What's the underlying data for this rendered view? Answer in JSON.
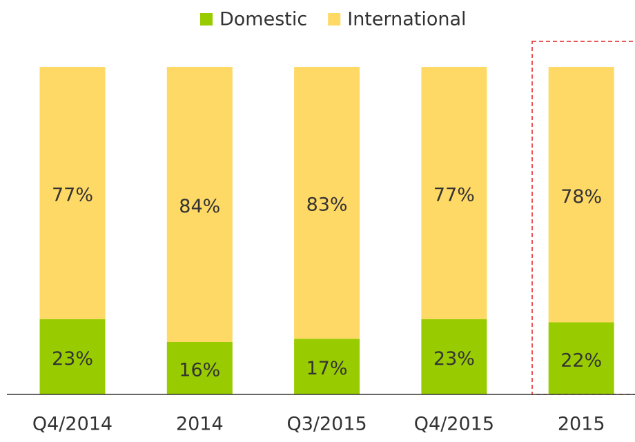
{
  "chart_data": {
    "type": "stacked_bar",
    "categories": [
      "Q4/2014",
      "2014",
      "Q3/2015",
      "Q4/2015",
      "2015"
    ],
    "series": [
      {
        "name": "Domestic",
        "color": "#99cc00",
        "values": [
          23,
          16,
          17,
          23,
          22
        ],
        "value_labels": [
          "23%",
          "16%",
          "17%",
          "23%",
          "22%"
        ]
      },
      {
        "name": "International",
        "color": "#ffd966",
        "values": [
          77,
          84,
          83,
          77,
          78
        ],
        "value_labels": [
          "77%",
          "84%",
          "83%",
          "77%",
          "78%"
        ]
      }
    ],
    "ylim": [
      0,
      100
    ],
    "legend": "top"
  }
}
